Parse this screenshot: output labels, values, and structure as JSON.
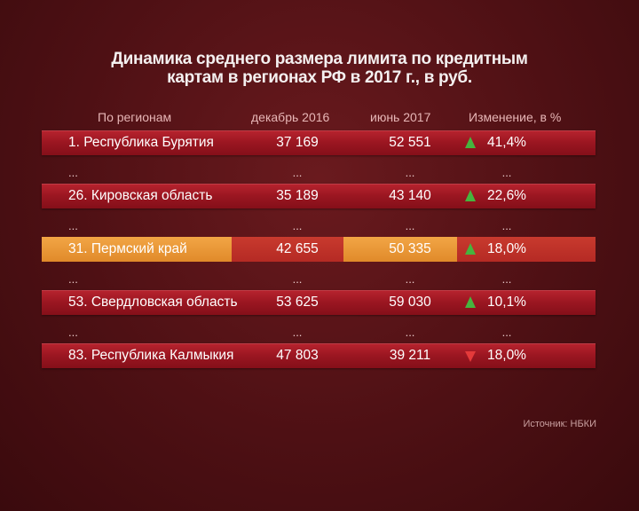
{
  "title_line1": "Динамика среднего размера лимита по кредитным",
  "title_line2": "картам в регионах РФ в 2017 г., в руб.",
  "headers": {
    "region": "По регионам",
    "dec": "декабрь 2016",
    "jun": "июнь 2017",
    "change": "Изменение, в %"
  },
  "source": "Источник: НБКИ",
  "ellipsis": "...",
  "colors": {
    "up": "#46b43e",
    "down": "#e43a3a",
    "highlight": "#f2a545",
    "band": "#9a1621"
  },
  "chart_data": {
    "type": "table",
    "title": "Динамика среднего размера лимита по кредитным картам в регионах РФ в 2017 г., в руб.",
    "columns": [
      "По регионам",
      "декабрь 2016",
      "июнь 2017",
      "Изменение, в %"
    ],
    "rows": [
      {
        "region": "1. Республика Бурятия",
        "dec": "37 169",
        "jun": "52 551",
        "direction": "up",
        "change": "41,4%"
      },
      {
        "region": "26. Кировская область",
        "dec": "35 189",
        "jun": "43 140",
        "direction": "up",
        "change": "22,6%"
      },
      {
        "region": "31. Пермский край",
        "dec": "42 655",
        "jun": "50 335",
        "direction": "up",
        "change": "18,0%",
        "highlight": true
      },
      {
        "region": "53. Свердловская область",
        "dec": "53 625",
        "jun": "59 030",
        "direction": "up",
        "change": "10,1%"
      },
      {
        "region": "83. Республика Калмыкия",
        "dec": "47 803",
        "jun": "39 211",
        "direction": "down",
        "change": "18,0%"
      }
    ]
  }
}
